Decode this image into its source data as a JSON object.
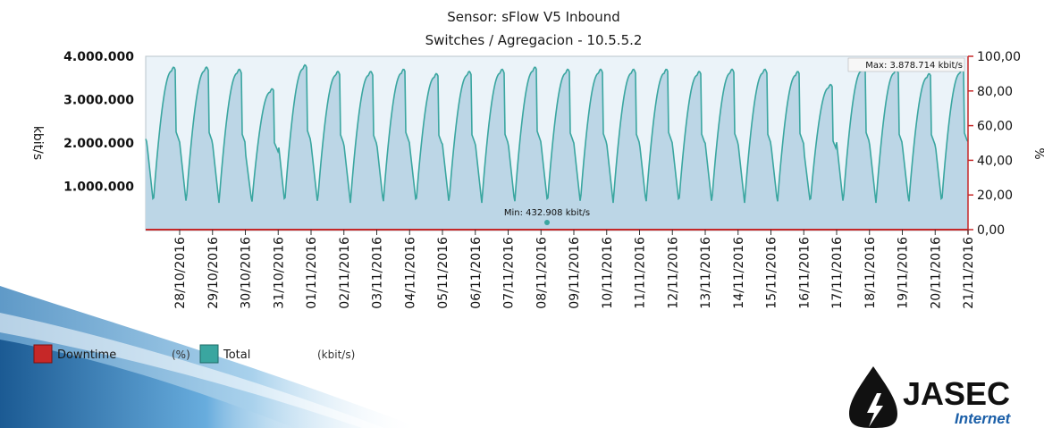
{
  "chart_data": {
    "type": "area",
    "title": "Sensor: sFlow V5 Inbound",
    "subtitle": "Switches / Agregacion - 10.5.5.2",
    "ylabel": "kbit/s",
    "y2label": "%",
    "ylim": [
      0,
      4000000
    ],
    "y2lim": [
      0,
      100
    ],
    "yticks": [
      "4.000.000",
      "3.000.000",
      "2.000.000",
      "1.000.000"
    ],
    "yticks_values": [
      4000000,
      3000000,
      2000000,
      1000000
    ],
    "y2ticks": [
      "100,00",
      "80,00",
      "60,00",
      "40,00",
      "20,00",
      "0,00"
    ],
    "y2ticks_values": [
      100,
      80,
      60,
      40,
      20,
      0
    ],
    "xticks": [
      "28/10/2016",
      "29/10/2016",
      "30/10/2016",
      "31/10/2016",
      "01/11/2016",
      "02/11/2016",
      "03/11/2016",
      "04/11/2016",
      "05/11/2016",
      "06/11/2016",
      "07/11/2016",
      "08/11/2016",
      "09/11/2016",
      "10/11/2016",
      "11/11/2016",
      "12/11/2016",
      "13/11/2016",
      "14/11/2016",
      "15/11/2016",
      "16/11/2016",
      "17/11/2016",
      "18/11/2016",
      "19/11/2016",
      "20/11/2016",
      "21/11/2016"
    ],
    "x_range": [
      "27/10/2016",
      "21/11/2016"
    ],
    "series": [
      {
        "name": "Total",
        "unit": "kbit/s",
        "axis": "left",
        "color": "#3aa6a0",
        "fill": "#bcd6e6",
        "daily_peaks": [
          3750000,
          3700000,
          3250000,
          3800000,
          3650000,
          3650000,
          3700000,
          3600000,
          3650000,
          3700000,
          3750000,
          3700000,
          3700000,
          3700000,
          3700000,
          3650000,
          3700000,
          3700000,
          3650000,
          3350000,
          3750000,
          3700000,
          3600000,
          3700000,
          3800000
        ],
        "daily_minimum": 600000
      },
      {
        "name": "Downtime",
        "unit": "%",
        "axis": "right",
        "color": "#c62828",
        "values_constant": 0
      }
    ],
    "annotations": {
      "max": "Max: 3.878.714 kbit/s",
      "min": "Min: 432.908 kbit/s"
    },
    "grid": false,
    "legend_position": "bottom-left"
  },
  "legend": {
    "downtime_label": "Downtime",
    "downtime_unit": "(%)",
    "total_label": "Total",
    "total_unit": "(kbit/s)",
    "downtime_color": "#c62828",
    "total_color": "#3aa6a0"
  },
  "logo": {
    "name": "JASEC",
    "tagline": "Internet"
  }
}
